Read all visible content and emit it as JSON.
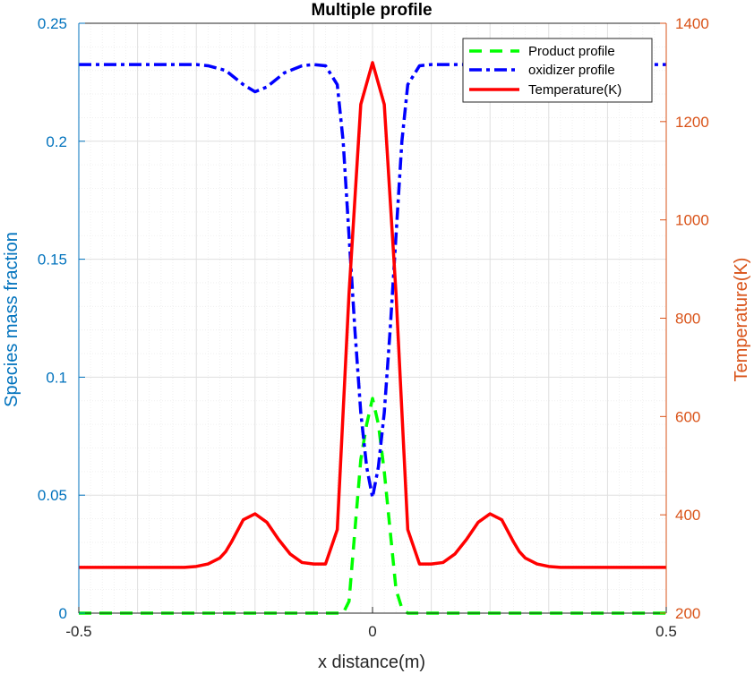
{
  "chart_data": {
    "type": "line",
    "title": "Multiple profile",
    "xlabel": "x distance(m)",
    "ylabel_left": "Species mass fraction",
    "ylabel_right": "Temperature(K)",
    "xlim": [
      -0.5,
      0.5
    ],
    "ylim_left": [
      0,
      0.25
    ],
    "ylim_right": [
      200,
      1400
    ],
    "x_ticks": [
      -0.5,
      0,
      0.5
    ],
    "x_tick_labels": [
      "-0.5",
      "0",
      "0.5"
    ],
    "y_left_ticks": [
      0,
      0.05,
      0.1,
      0.15,
      0.2,
      0.25
    ],
    "y_left_tick_labels": [
      "0",
      "0.05",
      "0.1",
      "0.15",
      "0.2",
      "0.25"
    ],
    "y_right_ticks": [
      200,
      400,
      600,
      800,
      1000,
      1200,
      1400
    ],
    "y_right_tick_labels": [
      "200",
      "400",
      "600",
      "800",
      "1000",
      "1200",
      "1400"
    ],
    "grid": true,
    "minor_grid": true,
    "legend_position": "top-right",
    "colors": {
      "left_axis": "#0072BD",
      "right_axis": "#D95319",
      "grid": "#dfdfdf"
    },
    "series": [
      {
        "name": "Product profile",
        "axis": "left",
        "color": "#00FF00",
        "style": "dashed",
        "x": [
          -0.5,
          -0.4,
          -0.3,
          -0.2,
          -0.1,
          -0.05,
          -0.04,
          -0.03,
          -0.02,
          -0.01,
          0,
          0.01,
          0.02,
          0.03,
          0.04,
          0.05,
          0.06,
          0.1,
          0.2,
          0.3,
          0.4,
          0.5
        ],
        "y": [
          0,
          0,
          0,
          0,
          0,
          0,
          0.005,
          0.035,
          0.065,
          0.08,
          0.091,
          0.08,
          0.06,
          0.035,
          0.01,
          0.002,
          0,
          0,
          0,
          0,
          0,
          0
        ]
      },
      {
        "name": "oxidizer profile",
        "axis": "left",
        "color": "#0000FF",
        "style": "dashdot",
        "x": [
          -0.5,
          -0.4,
          -0.3,
          -0.28,
          -0.25,
          -0.22,
          -0.2,
          -0.18,
          -0.15,
          -0.12,
          -0.1,
          -0.08,
          -0.06,
          -0.05,
          -0.04,
          -0.03,
          -0.02,
          -0.01,
          0,
          0.01,
          0.02,
          0.03,
          0.04,
          0.05,
          0.06,
          0.08,
          0.1,
          0.12,
          0.15,
          0.18,
          0.2,
          0.22,
          0.25,
          0.28,
          0.3,
          0.4,
          0.5
        ],
        "y": [
          0.2325,
          0.2325,
          0.2325,
          0.232,
          0.23,
          0.224,
          0.221,
          0.223,
          0.229,
          0.232,
          0.2325,
          0.232,
          0.224,
          0.2,
          0.16,
          0.12,
          0.085,
          0.062,
          0.049,
          0.062,
          0.085,
          0.12,
          0.16,
          0.2,
          0.224,
          0.232,
          0.2325,
          0.2325,
          0.2325,
          0.2325,
          0.2325,
          0.2325,
          0.2325,
          0.2325,
          0.2325,
          0.2325,
          0.2325
        ]
      },
      {
        "name": "Temperature(K)",
        "axis": "right",
        "color": "#FF0000",
        "style": "solid",
        "x": [
          -0.5,
          -0.4,
          -0.32,
          -0.3,
          -0.28,
          -0.26,
          -0.25,
          -0.24,
          -0.22,
          -0.2,
          -0.18,
          -0.16,
          -0.14,
          -0.12,
          -0.1,
          -0.08,
          -0.06,
          -0.04,
          -0.02,
          0,
          0.02,
          0.04,
          0.06,
          0.08,
          0.1,
          0.12,
          0.14,
          0.16,
          0.18,
          0.2,
          0.22,
          0.24,
          0.25,
          0.26,
          0.28,
          0.3,
          0.32,
          0.4,
          0.5
        ],
        "y": [
          293,
          293,
          293,
          295,
          300,
          312,
          325,
          345,
          390,
          402,
          385,
          350,
          320,
          303,
          300,
          300,
          370,
          850,
          1235,
          1320,
          1235,
          850,
          370,
          300,
          300,
          303,
          320,
          350,
          385,
          402,
          390,
          345,
          325,
          312,
          300,
          295,
          293,
          293,
          293
        ]
      }
    ]
  }
}
